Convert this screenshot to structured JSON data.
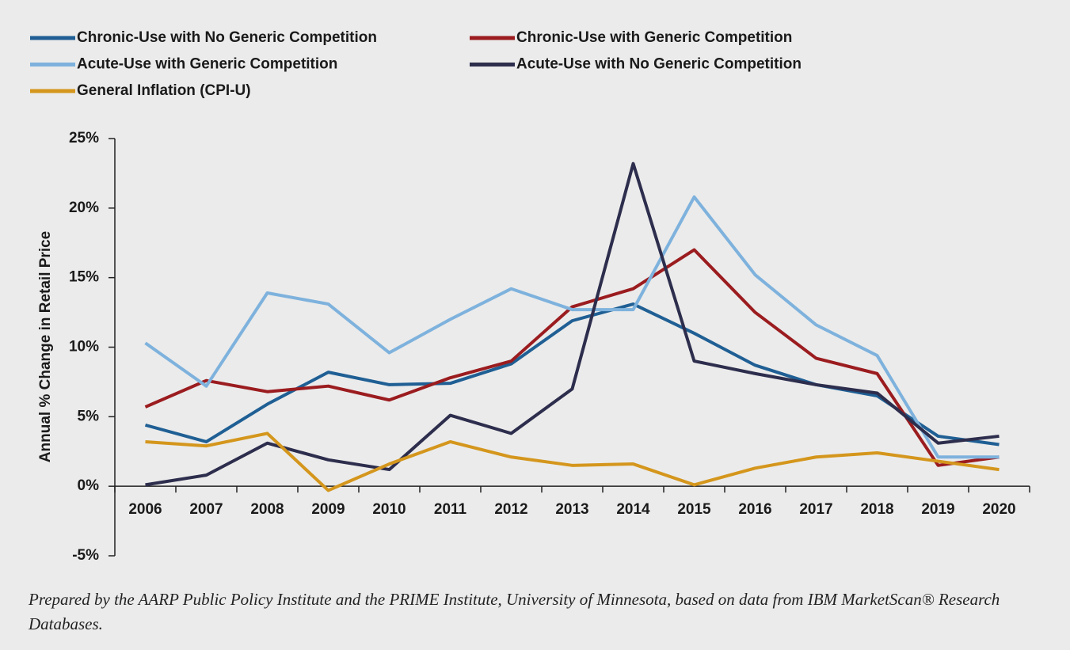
{
  "chart_data": {
    "type": "line",
    "ylabel": "Annual % Change in Retail Price",
    "categories": [
      "2006",
      "2007",
      "2008",
      "2009",
      "2010",
      "2011",
      "2012",
      "2013",
      "2014",
      "2015",
      "2016",
      "2017",
      "2018",
      "2019",
      "2020"
    ],
    "series": [
      {
        "name": "Chronic-Use with No Generic Competition",
        "color": "#1f5f94",
        "values": [
          4.4,
          3.2,
          5.9,
          8.2,
          7.3,
          7.4,
          8.8,
          11.9,
          13.1,
          11.0,
          8.7,
          7.3,
          6.5,
          3.6,
          3.0
        ]
      },
      {
        "name": "Chronic-Use with Generic Competition",
        "color": "#9b1c1f",
        "values": [
          5.7,
          7.6,
          6.8,
          7.2,
          6.2,
          7.8,
          9.0,
          12.9,
          14.2,
          17.0,
          12.5,
          9.2,
          8.1,
          1.5,
          2.1
        ]
      },
      {
        "name": "Acute-Use with Generic Competition",
        "color": "#7eb2dd",
        "values": [
          10.3,
          7.2,
          13.9,
          13.1,
          9.6,
          12.0,
          14.2,
          12.7,
          12.7,
          20.8,
          15.2,
          11.6,
          9.4,
          2.1,
          2.1
        ]
      },
      {
        "name": "Acute-Use with No Generic Competition",
        "color": "#2d2d4d",
        "values": [
          0.1,
          0.8,
          3.1,
          1.9,
          1.2,
          5.1,
          3.8,
          7.0,
          23.2,
          9.0,
          8.1,
          7.3,
          6.7,
          3.1,
          3.6
        ]
      },
      {
        "name": "General Inflation (CPI-U)",
        "color": "#d4961c",
        "values": [
          3.2,
          2.9,
          3.8,
          -0.3,
          1.6,
          3.2,
          2.1,
          1.5,
          1.6,
          0.1,
          1.3,
          2.1,
          2.4,
          1.8,
          1.2
        ]
      }
    ],
    "ylim": [
      -5,
      25
    ],
    "yticks": [
      {
        "value": -5,
        "label": "-5%"
      },
      {
        "value": 0,
        "label": "0%"
      },
      {
        "value": 5,
        "label": "5%"
      },
      {
        "value": 10,
        "label": "10%"
      },
      {
        "value": 15,
        "label": "15%"
      },
      {
        "value": 20,
        "label": "20%"
      },
      {
        "value": 25,
        "label": "25%"
      }
    ],
    "legend": "top",
    "note": "Prepared by the AARP Public Policy Institute and the PRIME Institute, University of Minnesota, based on data from IBM MarketScan® Research Databases."
  }
}
